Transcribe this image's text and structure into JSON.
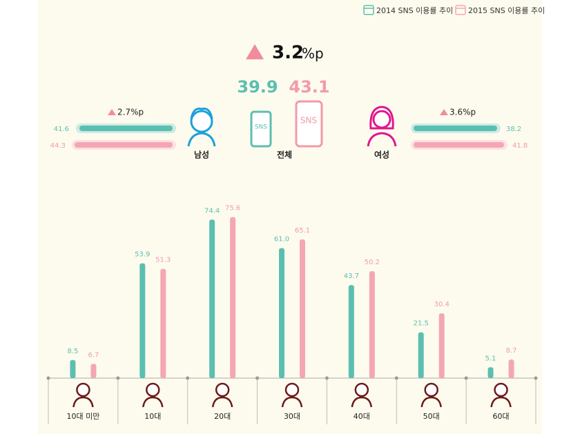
{
  "chart_data": {
    "type": "bar",
    "categories": [
      "10대 미만",
      "10대",
      "20대",
      "30대",
      "40대",
      "50대",
      "60대"
    ],
    "series": [
      {
        "name": "2014 SNS 이용률 추이",
        "color": "#5bbfb0",
        "values": [
          8.5,
          53.9,
          74.4,
          61.0,
          43.7,
          21.5,
          5.1
        ],
        "value_labels": [
          "8.5",
          "53.9",
          "74.4",
          "61.0",
          "43.7",
          "21.5",
          "5.1"
        ]
      },
      {
        "name": "2015 SNS 이용률 추이",
        "color": "#f4a7b3",
        "values": [
          6.7,
          51.3,
          75.6,
          65.1,
          50.2,
          30.4,
          8.7
        ]
      }
    ],
    "ylim": [
      0,
      80
    ]
  },
  "summary": {
    "total": {
      "change": "3.2",
      "unit": "%p",
      "value_2014": "39.9",
      "value_2015": "43.1",
      "label": "전체",
      "phone_text": "SNS"
    },
    "male": {
      "change": "2.7%p",
      "value_2014": "41.6",
      "value_2015": "44.3",
      "label": "남성"
    },
    "female": {
      "change": "3.6%p",
      "value_2014": "38.2",
      "value_2015": "41.8",
      "label": "여성"
    }
  }
}
